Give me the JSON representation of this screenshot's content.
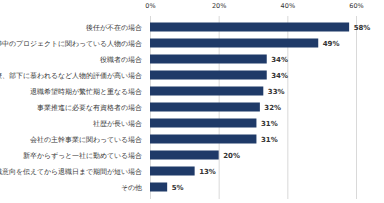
{
  "chart_data": {
    "type": "bar",
    "orientation": "horizontal",
    "categories": [
      "後任が不在の場合",
      "進捗中のプロジェクトに関わっている人物の場合",
      "役職者の場合",
      "上司、同僚、部下に慕われるなど人物的評価が高い場合",
      "退職希望時期が繁忙期と重なる場合",
      "事業推進に必要な有資格者の場合",
      "社歴が長い場合",
      "会社の主幹事業に関わっている場合",
      "新卒からずっと一社に勤めている場合",
      "退職意向を伝えてから退職日まで期間が短い場合",
      "その他"
    ],
    "values": [
      58,
      49,
      34,
      34,
      33,
      32,
      31,
      31,
      20,
      13,
      5
    ],
    "value_labels": [
      "58%",
      "49%",
      "34%",
      "34%",
      "33%",
      "32%",
      "31%",
      "31%",
      "20%",
      "13%",
      "5%"
    ],
    "color": "#1f3a68",
    "xlim": [
      0,
      60
    ],
    "xticks": [
      {
        "value": 0,
        "label": "0%"
      },
      {
        "value": 20,
        "label": "20%"
      },
      {
        "value": 40,
        "label": "40%"
      },
      {
        "value": 60,
        "label": "60%"
      }
    ],
    "grid": true,
    "data_labels": true
  }
}
